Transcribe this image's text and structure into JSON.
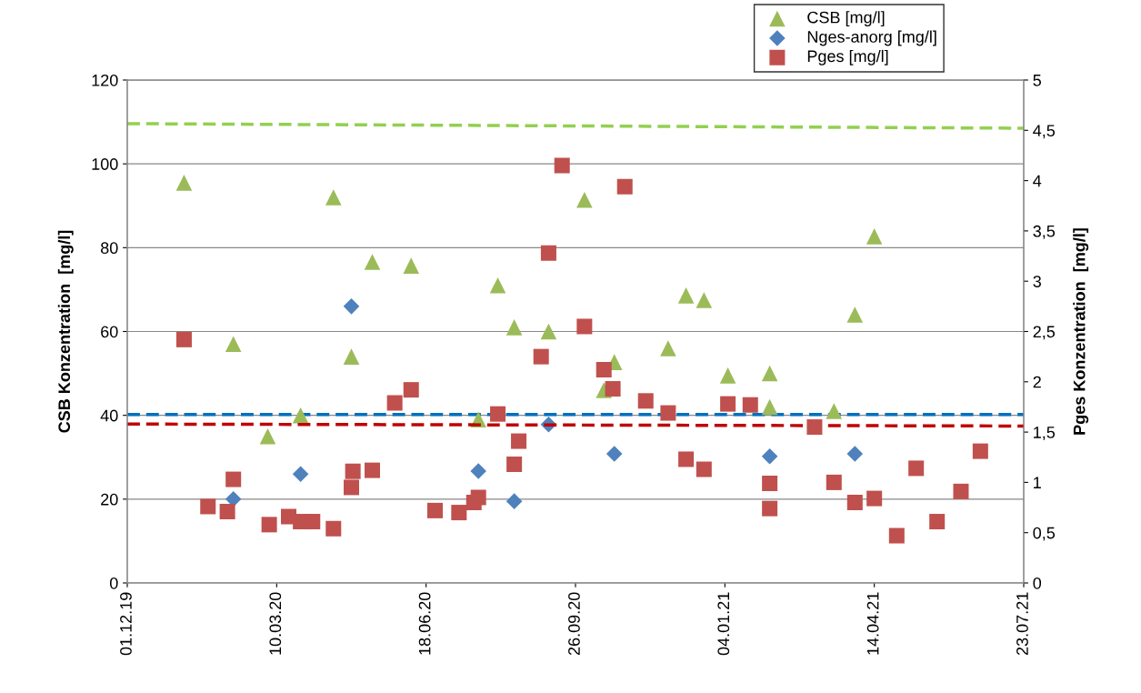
{
  "chart_data": {
    "type": "scatter",
    "ylabel": "CSB Konzentration  [mg/l]",
    "y2label": "Pges Konzentration  [mg/l]",
    "xlim": [
      "2019-12-01",
      "2021-07-23"
    ],
    "xticks": [
      {
        "value": "2019-12-01",
        "label": "01.12.19"
      },
      {
        "value": "2020-03-10",
        "label": "10.03.20"
      },
      {
        "value": "2020-06-18",
        "label": "18.06.20"
      },
      {
        "value": "2020-09-26",
        "label": "26.09.20"
      },
      {
        "value": "2021-01-04",
        "label": "04.01.21"
      },
      {
        "value": "2021-04-14",
        "label": "14.04.21"
      },
      {
        "value": "2021-07-23",
        "label": "23.07.21"
      }
    ],
    "ylim": [
      0,
      120
    ],
    "yticks": [
      0,
      20,
      40,
      60,
      80,
      100,
      120
    ],
    "y2lim": [
      0,
      5
    ],
    "y2ticks": [
      0,
      {
        "value": 0.5,
        "label": "0,5"
      },
      1,
      {
        "value": 1.5,
        "label": "1,5"
      },
      2,
      {
        "value": 2.5,
        "label": "2,5"
      },
      3,
      {
        "value": 3.5,
        "label": "3,5"
      },
      4,
      {
        "value": 4.5,
        "label": "4,5"
      },
      5
    ],
    "grid": "y",
    "legend": "top right",
    "series": [
      {
        "name": "CSB [mg/l]",
        "color": "#9bbb59",
        "marker": "triangle",
        "x": [
          "2020-01-08",
          "2020-02-10",
          "2020-03-04",
          "2020-03-26",
          "2020-04-17",
          "2020-04-29",
          "2020-05-13",
          "2020-06-08",
          "2020-07-23",
          "2020-08-05",
          "2020-08-16",
          "2020-09-08",
          "2020-10-02",
          "2020-10-15",
          "2020-10-22",
          "2020-11-27",
          "2020-12-09",
          "2020-12-21",
          "2021-01-06",
          "2021-02-03",
          "2021-02-03",
          "2021-03-18",
          "2021-04-01",
          "2021-04-14"
        ],
        "values": [
          95.5,
          57,
          35,
          40,
          92,
          54,
          76.6,
          75.7,
          39,
          71,
          61,
          60,
          91.4,
          46,
          52.7,
          56,
          68.6,
          67.5,
          49.5,
          50,
          42,
          41,
          64,
          82.7
        ]
      },
      {
        "name": "Nges-anorg [mg/l]",
        "color": "#4f81bd",
        "marker": "diamond",
        "x": [
          "2020-02-10",
          "2020-03-26",
          "2020-04-29",
          "2020-07-23",
          "2020-08-16",
          "2020-09-08",
          "2020-10-22",
          "2021-02-03",
          "2021-04-01"
        ],
        "values": [
          20,
          26,
          66,
          26.7,
          19.5,
          37.8,
          30.8,
          30.2,
          30.8
        ]
      },
      {
        "name": "Pges [mg/l]",
        "color": "#c0504d",
        "marker": "square",
        "axis": "y2",
        "x": [
          "2020-01-08",
          "2020-01-24",
          "2020-02-06",
          "2020-02-10",
          "2020-03-05",
          "2020-03-18",
          "2020-03-26",
          "2020-04-03",
          "2020-04-17",
          "2020-04-29",
          "2020-04-30",
          "2020-05-13",
          "2020-05-28",
          "2020-06-08",
          "2020-06-24",
          "2020-07-10",
          "2020-07-20",
          "2020-07-23",
          "2020-08-05",
          "2020-08-16",
          "2020-08-19",
          "2020-09-03",
          "2020-09-08",
          "2020-09-17",
          "2020-10-02",
          "2020-10-15",
          "2020-10-21",
          "2020-10-29",
          "2020-11-12",
          "2020-11-27",
          "2020-12-09",
          "2020-12-21",
          "2021-01-06",
          "2021-01-21",
          "2021-02-03",
          "2021-02-03",
          "2021-03-05",
          "2021-03-18",
          "2021-04-01",
          "2021-04-14",
          "2021-04-29",
          "2021-05-12",
          "2021-05-26",
          "2021-06-11",
          "2021-06-24"
        ],
        "values": [
          2.42,
          0.76,
          0.71,
          1.03,
          0.58,
          0.66,
          0.61,
          0.61,
          0.54,
          0.95,
          1.11,
          1.12,
          1.79,
          1.92,
          0.72,
          0.7,
          0.8,
          0.85,
          1.68,
          1.18,
          1.41,
          2.25,
          3.28,
          4.15,
          2.55,
          2.12,
          1.93,
          3.94,
          1.81,
          1.69,
          1.23,
          1.13,
          1.78,
          1.77,
          0.99,
          0.74,
          1.55,
          1.0,
          0.8,
          0.84,
          0.47,
          1.14,
          0.61,
          0.91,
          1.31
        ]
      },
      {
        "type": "line",
        "color": "#92d050",
        "line_style": "dashed",
        "marker": "none",
        "x": [
          "2019-12-01",
          "2021-07-23"
        ],
        "values": [
          109.6,
          108.5
        ]
      },
      {
        "type": "line",
        "color": "#0070c0",
        "line_style": "dashed",
        "marker": "none",
        "x": [
          "2019-12-01",
          "2021-07-23"
        ],
        "values": [
          40.2,
          40.2
        ]
      },
      {
        "type": "line",
        "color": "#c00000",
        "line_style": "dashed",
        "marker": "none",
        "axis": "y2",
        "x": [
          "2019-12-01",
          "2021-07-23"
        ],
        "values": [
          1.58,
          1.56
        ]
      }
    ]
  }
}
